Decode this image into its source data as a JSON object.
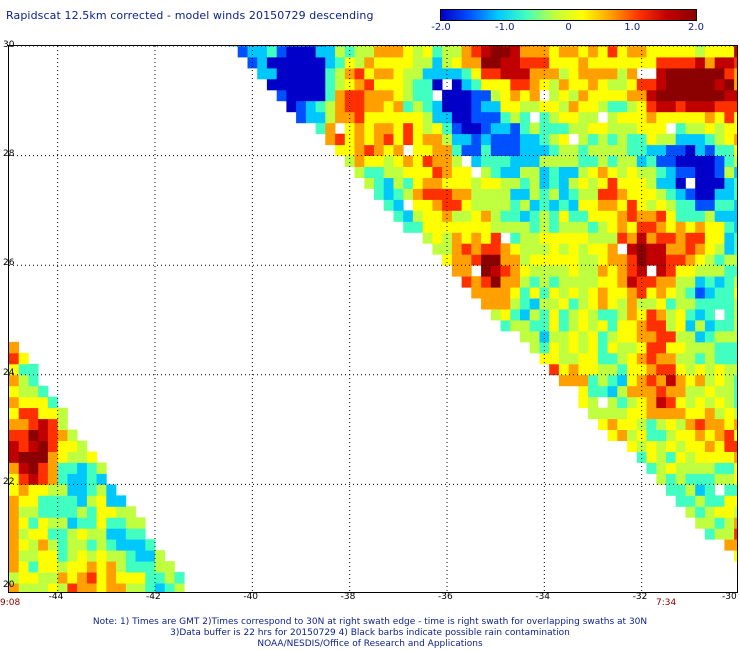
{
  "title": "Rapidscat 12.5km corrected - model winds 20150729 descending",
  "colorbar": {
    "min": -2.0,
    "max": 2.0,
    "tick_labels": [
      "-2.0",
      "-1.0",
      "0",
      "1.0",
      "2.0"
    ],
    "tick_values": [
      -2.0,
      -1.0,
      0,
      1.0,
      2.0
    ],
    "colors": [
      "#0000c8",
      "#0050ff",
      "#00c8ff",
      "#40ffc0",
      "#c0ff40",
      "#ffff00",
      "#ffa000",
      "#ff3000",
      "#c00000",
      "#8b0000"
    ]
  },
  "chart_data": {
    "type": "heatmap",
    "title": "Rapidscat 12.5km corrected - model winds 20150729 descending",
    "xlim": [
      -45,
      -30
    ],
    "ylim": [
      20,
      30
    ],
    "x_tick_labels": [
      "-44",
      "-42",
      "-40",
      "-38",
      "-36",
      "-34",
      "-32",
      "-30"
    ],
    "x_tick_values": [
      -44,
      -42,
      -40,
      -38,
      -36,
      -34,
      -32,
      -30
    ],
    "y_tick_labels": [
      "20",
      "22",
      "24",
      "26",
      "28",
      "30"
    ],
    "y_tick_values": [
      20,
      22,
      24,
      26,
      28,
      30
    ],
    "grid": true,
    "value_range": [
      -2.0,
      2.0
    ],
    "swaths": [
      {
        "time_label": "9:08",
        "lon_range": [
          -45,
          -41.4
        ],
        "lat_range": [
          20,
          24.5
        ]
      },
      {
        "time_label": "7:34",
        "lon_range": [
          -40.5,
          -30
        ],
        "lat_range": [
          20.5,
          30
        ]
      }
    ]
  },
  "notes": [
    "Note: 1) Times are GMT 2)Times correspond to 30N at right swath edge - time is right swath for overlapping swaths at 30N",
    "3)Data buffer is 22 hrs for 20150729 4) Black barbs indicate possible rain contamination",
    "NOAA/NESDIS/Office of Research and Applications"
  ]
}
